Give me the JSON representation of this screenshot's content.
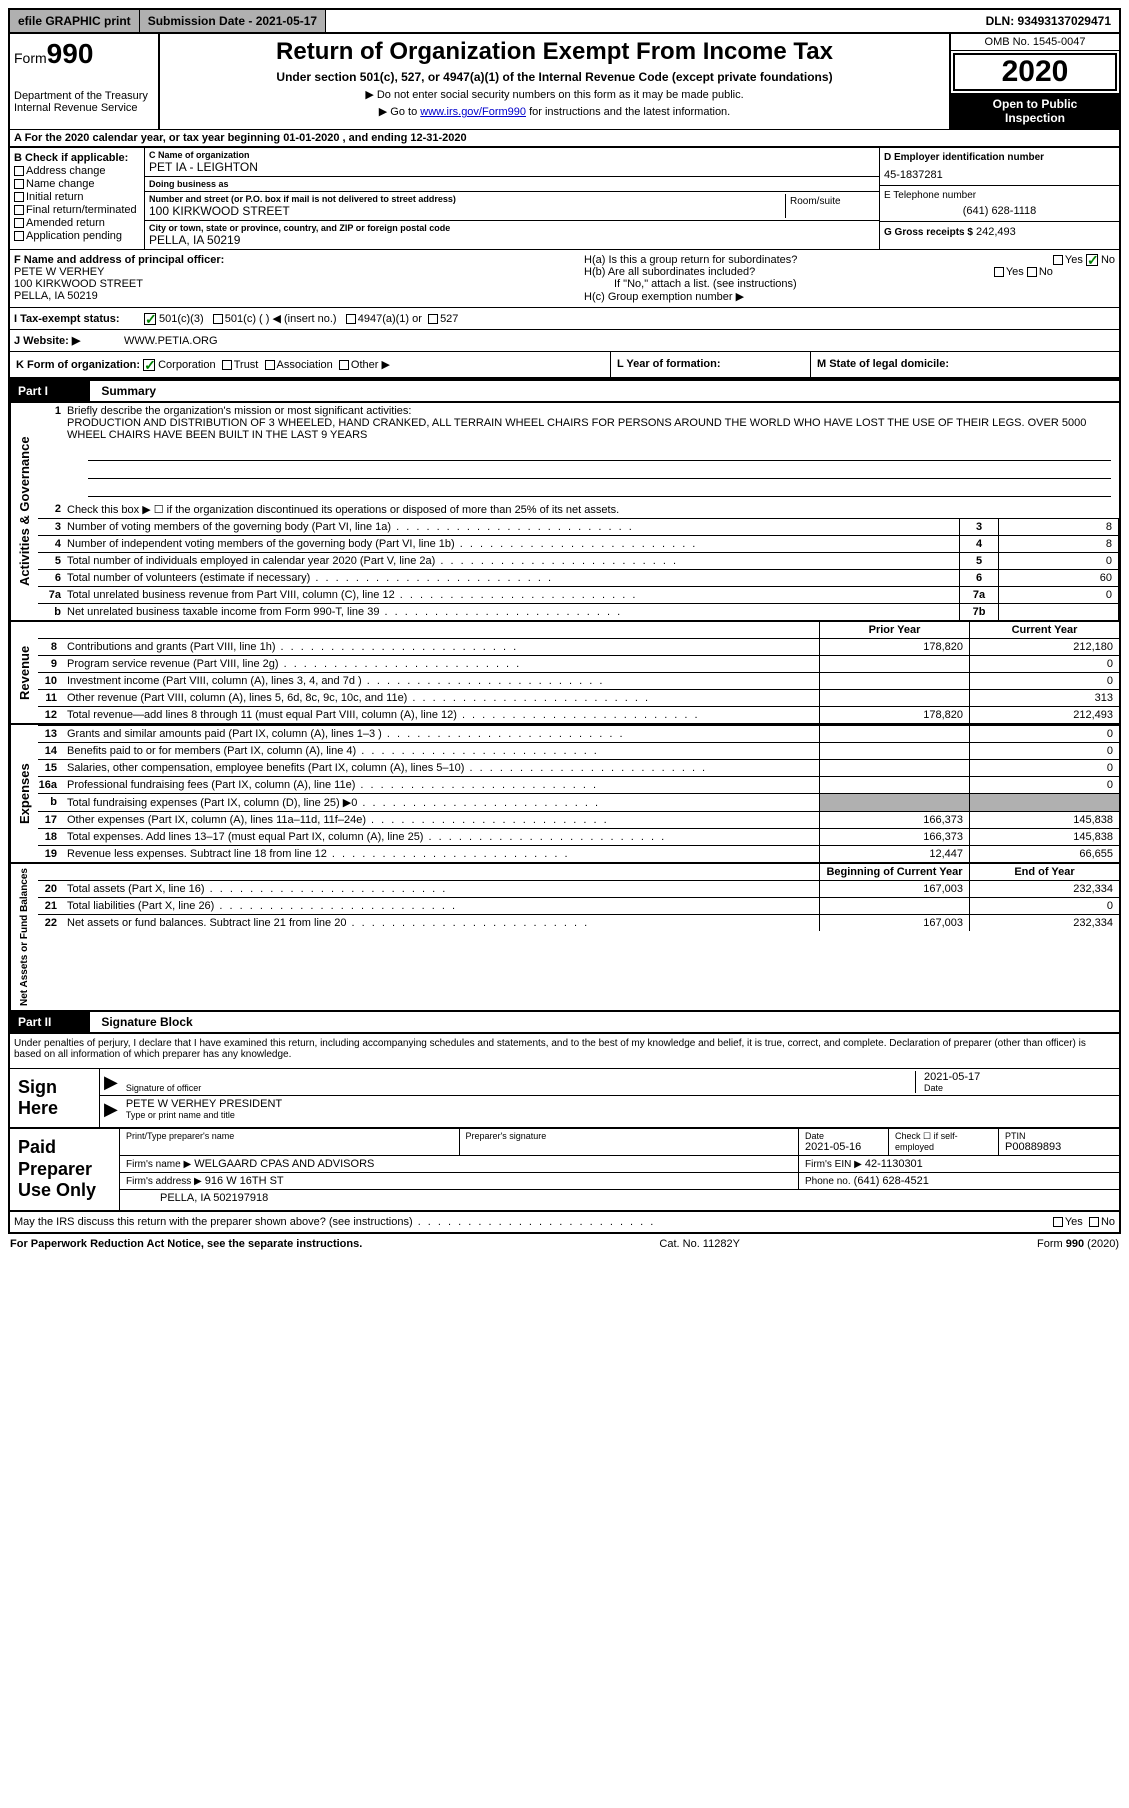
{
  "topbar": {
    "efile": "efile GRAPHIC print",
    "submission_label": "Submission Date - 2021-05-17",
    "dln": "DLN: 93493137029471"
  },
  "header": {
    "form_prefix": "Form",
    "form_no": "990",
    "title": "Return of Organization Exempt From Income Tax",
    "subtitle": "Under section 501(c), 527, or 4947(a)(1) of the Internal Revenue Code (except private foundations)",
    "note1": "Do not enter social security numbers on this form as it may be made public.",
    "note2_pre": "Go to ",
    "note2_link": "www.irs.gov/Form990",
    "note2_post": " for instructions and the latest information.",
    "dept": "Department of the Treasury",
    "irs": "Internal Revenue Service",
    "omb": "OMB No. 1545-0047",
    "year": "2020",
    "open_public1": "Open to Public",
    "open_public2": "Inspection"
  },
  "rowA": "A For the 2020 calendar year, or tax year beginning 01-01-2020    , and ending 12-31-2020",
  "B": {
    "label": "B Check if applicable:",
    "opts": [
      "Address change",
      "Name change",
      "Initial return",
      "Final return/terminated",
      "Amended return",
      "Application pending"
    ]
  },
  "C": {
    "name_label": "C Name of organization",
    "name": "PET IA - LEIGHTON",
    "dba_label": "Doing business as",
    "dba": "",
    "addr_label": "Number and street (or P.O. box if mail is not delivered to street address)",
    "addr": "100 KIRKWOOD STREET",
    "room_label": "Room/suite",
    "city_label": "City or town, state or province, country, and ZIP or foreign postal code",
    "city": "PELLA, IA  50219"
  },
  "D": {
    "label": "D Employer identification number",
    "val": "45-1837281"
  },
  "E": {
    "label": "E Telephone number",
    "val": "(641) 628-1118"
  },
  "G": {
    "label": "G Gross receipts $",
    "val": "242,493"
  },
  "F": {
    "label": "F  Name and address of principal officer:",
    "name": "PETE W VERHEY",
    "addr": "100 KIRKWOOD STREET",
    "city": "PELLA, IA  50219"
  },
  "H": {
    "a": "H(a)  Is this a group return for subordinates?",
    "b": "H(b)  Are all subordinates included?",
    "b_note": "If \"No,\" attach a list. (see instructions)",
    "c": "H(c)  Group exemption number ▶",
    "yes": "Yes",
    "no": "No"
  },
  "I": {
    "label": "I   Tax-exempt status:",
    "c3": "501(c)(3)",
    "c_other": "501(c) (   ) ◀ (insert no.)",
    "a4947": "4947(a)(1) or",
    "s527": "527"
  },
  "J": {
    "label": "J    Website: ▶",
    "val": "WWW.PETIA.ORG"
  },
  "K": {
    "label": "K Form of organization:",
    "corp": "Corporation",
    "trust": "Trust",
    "assoc": "Association",
    "other": "Other ▶"
  },
  "L": {
    "label": "L Year of formation:"
  },
  "M": {
    "label": "M State of legal domicile:"
  },
  "part1": {
    "header": "Part I",
    "title": "Summary"
  },
  "summary": {
    "line1_label": "Briefly describe the organization's mission or most significant activities:",
    "line1_text": "PRODUCTION AND DISTRIBUTION OF 3 WHEELED, HAND CRANKED, ALL TERRAIN WHEEL CHAIRS FOR PERSONS AROUND THE WORLD WHO HAVE LOST THE USE OF THEIR LEGS. OVER 5000 WHEEL CHAIRS HAVE BEEN BUILT IN THE LAST 9 YEARS",
    "line2": "Check this box ▶ ☐  if the organization discontinued its operations or disposed of more than 25% of its net assets.",
    "line3": "Number of voting members of the governing body (Part VI, line 1a)",
    "line4": "Number of independent voting members of the governing body (Part VI, line 1b)",
    "line5": "Total number of individuals employed in calendar year 2020 (Part V, line 2a)",
    "line6": "Total number of volunteers (estimate if necessary)",
    "line7a": "Total unrelated business revenue from Part VIII, column (C), line 12",
    "line7b": "Net unrelated business taxable income from Form 990-T, line 39",
    "v3": "8",
    "v4": "8",
    "v5": "0",
    "v6": "60",
    "v7a": "0",
    "v7b": ""
  },
  "tab_ag": "Activities & Governance",
  "tab_rev": "Revenue",
  "tab_exp": "Expenses",
  "tab_na": "Net Assets or Fund Balances",
  "cols": {
    "prior": "Prior Year",
    "current": "Current Year",
    "begin": "Beginning of Current Year",
    "end": "End of Year"
  },
  "revenue": [
    {
      "n": "8",
      "t": "Contributions and grants (Part VIII, line 1h)",
      "p": "178,820",
      "c": "212,180"
    },
    {
      "n": "9",
      "t": "Program service revenue (Part VIII, line 2g)",
      "p": "",
      "c": "0"
    },
    {
      "n": "10",
      "t": "Investment income (Part VIII, column (A), lines 3, 4, and 7d )",
      "p": "",
      "c": "0"
    },
    {
      "n": "11",
      "t": "Other revenue (Part VIII, column (A), lines 5, 6d, 8c, 9c, 10c, and 11e)",
      "p": "",
      "c": "313"
    },
    {
      "n": "12",
      "t": "Total revenue—add lines 8 through 11 (must equal Part VIII, column (A), line 12)",
      "p": "178,820",
      "c": "212,493"
    }
  ],
  "expenses": [
    {
      "n": "13",
      "t": "Grants and similar amounts paid (Part IX, column (A), lines 1–3 )",
      "p": "",
      "c": "0"
    },
    {
      "n": "14",
      "t": "Benefits paid to or for members (Part IX, column (A), line 4)",
      "p": "",
      "c": "0"
    },
    {
      "n": "15",
      "t": "Salaries, other compensation, employee benefits (Part IX, column (A), lines 5–10)",
      "p": "",
      "c": "0"
    },
    {
      "n": "16a",
      "t": "Professional fundraising fees (Part IX, column (A), line 11e)",
      "p": "",
      "c": "0"
    },
    {
      "n": "b",
      "t": "Total fundraising expenses (Part IX, column (D), line 25) ▶0",
      "p": "SHADE",
      "c": "SHADE"
    },
    {
      "n": "17",
      "t": "Other expenses (Part IX, column (A), lines 11a–11d, 11f–24e)",
      "p": "166,373",
      "c": "145,838"
    },
    {
      "n": "18",
      "t": "Total expenses. Add lines 13–17 (must equal Part IX, column (A), line 25)",
      "p": "166,373",
      "c": "145,838"
    },
    {
      "n": "19",
      "t": "Revenue less expenses. Subtract line 18 from line 12",
      "p": "12,447",
      "c": "66,655"
    }
  ],
  "netassets": [
    {
      "n": "20",
      "t": "Total assets (Part X, line 16)",
      "p": "167,003",
      "c": "232,334"
    },
    {
      "n": "21",
      "t": "Total liabilities (Part X, line 26)",
      "p": "",
      "c": "0"
    },
    {
      "n": "22",
      "t": "Net assets or fund balances. Subtract line 21 from line 20",
      "p": "167,003",
      "c": "232,334"
    }
  ],
  "part2": {
    "header": "Part II",
    "title": "Signature Block"
  },
  "sig": {
    "penalty": "Under penalties of perjury, I declare that I have examined this return, including accompanying schedules and statements, and to the best of my knowledge and belief, it is true, correct, and complete. Declaration of preparer (other than officer) is based on all information of which preparer has any knowledge.",
    "sign_here": "Sign Here",
    "sig_officer_label": "Signature of officer",
    "date_label": "Date",
    "date_val": "2021-05-17",
    "name_label": "Type or print name and title",
    "name_val": "PETE W VERHEY  PRESIDENT"
  },
  "paid": {
    "title": "Paid Preparer Use Only",
    "print_name_label": "Print/Type preparer's name",
    "sig_label": "Preparer's signature",
    "pdate_label": "Date",
    "pdate_val": "2021-05-16",
    "check_label": "Check ☐ if self-employed",
    "ptin_label": "PTIN",
    "ptin_val": "P00889893",
    "firm_name_label": "Firm's name    ▶",
    "firm_name": "WELGAARD CPAS AND ADVISORS",
    "firm_ein_label": "Firm's EIN ▶",
    "firm_ein": "42-1130301",
    "firm_addr_label": "Firm's address ▶",
    "firm_addr": "916 W 16TH ST",
    "firm_city": "PELLA, IA  502197918",
    "phone_label": "Phone no.",
    "phone": "(641) 628-4521"
  },
  "discuss": "May the IRS discuss this return with the preparer shown above? (see instructions)",
  "footer": {
    "left": "For Paperwork Reduction Act Notice, see the separate instructions.",
    "mid": "Cat. No. 11282Y",
    "right": "Form 990 (2020)"
  }
}
